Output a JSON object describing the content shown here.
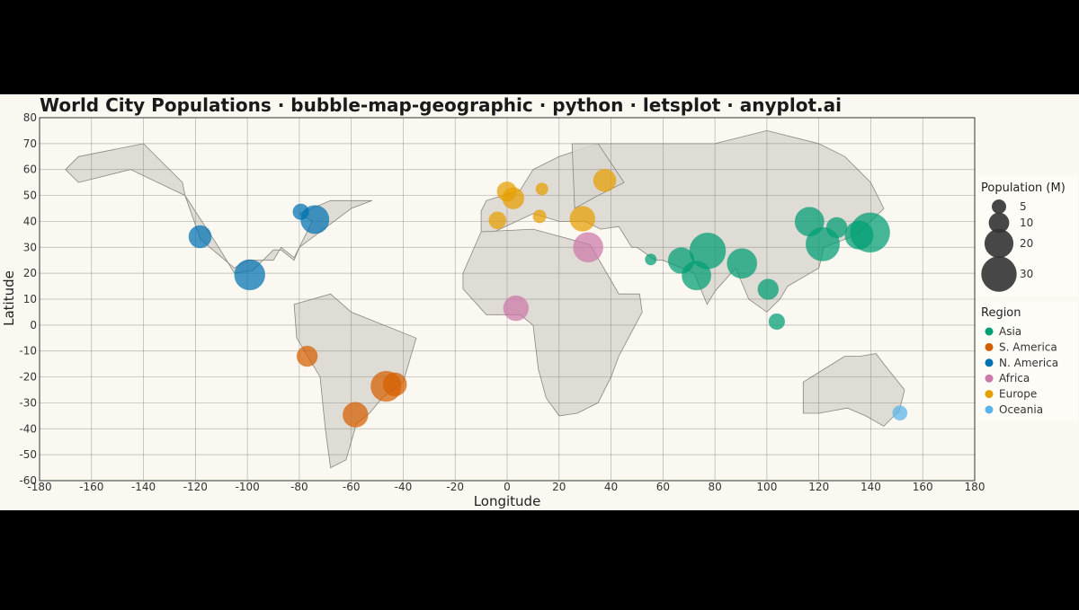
{
  "chart_data": {
    "type": "scatter",
    "title": "World City Populations · bubble-map-geographic · python · letsplot · anyplot.ai",
    "xlabel": "Longitude",
    "ylabel": "Latitude",
    "xlim": [
      -180,
      180
    ],
    "ylim": [
      -60,
      80
    ],
    "x_ticks": [
      -180,
      -160,
      -140,
      -120,
      -100,
      -80,
      -60,
      -40,
      -20,
      0,
      20,
      40,
      60,
      80,
      100,
      120,
      140,
      160,
      180
    ],
    "y_ticks": [
      -60,
      -50,
      -40,
      -30,
      -20,
      -10,
      0,
      10,
      20,
      30,
      40,
      50,
      60,
      70,
      80
    ],
    "grid": true,
    "legend_position": "right",
    "size_legend": {
      "title": "Population (M)",
      "values": [
        5,
        10,
        20,
        30
      ]
    },
    "color_legend": {
      "title": "Region",
      "entries": [
        {
          "name": "Asia",
          "color": "#009E73"
        },
        {
          "name": "S. America",
          "color": "#D55E00"
        },
        {
          "name": "N. America",
          "color": "#0072B2"
        },
        {
          "name": "Africa",
          "color": "#CC79A7"
        },
        {
          "name": "Europe",
          "color": "#E69F00"
        },
        {
          "name": "Oceania",
          "color": "#56B4E9"
        }
      ]
    },
    "series": [
      {
        "name": "Asia",
        "color": "#009E73",
        "points": [
          {
            "x": 139.7,
            "y": 35.7,
            "size": 37
          },
          {
            "x": 77.2,
            "y": 28.6,
            "size": 31
          },
          {
            "x": 121.5,
            "y": 31.2,
            "size": 27
          },
          {
            "x": 90.4,
            "y": 23.8,
            "size": 21
          },
          {
            "x": 116.4,
            "y": 39.9,
            "size": 20
          },
          {
            "x": 72.9,
            "y": 19.1,
            "size": 20
          },
          {
            "x": 135.5,
            "y": 34.7,
            "size": 19
          },
          {
            "x": 67.0,
            "y": 24.9,
            "size": 16
          },
          {
            "x": 126.9,
            "y": 37.6,
            "size": 10
          },
          {
            "x": 100.5,
            "y": 13.8,
            "size": 10
          },
          {
            "x": 103.8,
            "y": 1.35,
            "size": 6
          },
          {
            "x": 55.3,
            "y": 25.3,
            "size": 3
          }
        ]
      },
      {
        "name": "S. America",
        "color": "#D55E00",
        "points": [
          {
            "x": -46.6,
            "y": -23.6,
            "size": 22
          },
          {
            "x": -58.4,
            "y": -34.6,
            "size": 15
          },
          {
            "x": -43.2,
            "y": -22.9,
            "size": 13
          },
          {
            "x": -77.0,
            "y": -12.0,
            "size": 10
          }
        ]
      },
      {
        "name": "N. America",
        "color": "#0072B2",
        "points": [
          {
            "x": -99.1,
            "y": 19.4,
            "size": 22
          },
          {
            "x": -74.0,
            "y": 40.7,
            "size": 19
          },
          {
            "x": -118.2,
            "y": 34.1,
            "size": 12
          },
          {
            "x": -79.4,
            "y": 43.7,
            "size": 6
          }
        ]
      },
      {
        "name": "Africa",
        "color": "#CC79A7",
        "points": [
          {
            "x": 31.2,
            "y": 30.0,
            "size": 21
          },
          {
            "x": 3.4,
            "y": 6.5,
            "size": 15
          }
        ]
      },
      {
        "name": "Europe",
        "color": "#E69F00",
        "points": [
          {
            "x": 29.0,
            "y": 41.0,
            "size": 15
          },
          {
            "x": 37.6,
            "y": 55.8,
            "size": 12
          },
          {
            "x": 2.35,
            "y": 48.9,
            "size": 11
          },
          {
            "x": -0.1,
            "y": 51.5,
            "size": 9
          },
          {
            "x": -3.7,
            "y": 40.4,
            "size": 7
          },
          {
            "x": 12.5,
            "y": 41.9,
            "size": 4
          },
          {
            "x": 13.4,
            "y": 52.5,
            "size": 3.5
          }
        ]
      },
      {
        "name": "Oceania",
        "color": "#56B4E9",
        "points": [
          {
            "x": 151.2,
            "y": -33.9,
            "size": 5
          }
        ]
      }
    ],
    "land_outlines": [
      {
        "name": "north-america",
        "coords": [
          [
            -170,
            60
          ],
          [
            -165,
            65
          ],
          [
            -140,
            70
          ],
          [
            -125,
            55
          ],
          [
            -124,
            50
          ],
          [
            -118,
            33
          ],
          [
            -105,
            22
          ],
          [
            -100,
            25
          ],
          [
            -90,
            25
          ],
          [
            -87,
            30
          ],
          [
            -82,
            26
          ],
          [
            -80,
            30
          ],
          [
            -60,
            45
          ],
          [
            -52,
            48
          ],
          [
            -68,
            48
          ],
          [
            -80,
            43
          ],
          [
            -75,
            40
          ],
          [
            -80,
            30
          ],
          [
            -82,
            25
          ],
          [
            -87,
            29
          ],
          [
            -90,
            29
          ],
          [
            -98,
            21
          ],
          [
            -105,
            20
          ],
          [
            -111,
            30
          ],
          [
            -124,
            50
          ],
          [
            -145,
            60
          ],
          [
            -165,
            55
          ],
          [
            -170,
            60
          ]
        ]
      },
      {
        "name": "south-america",
        "coords": [
          [
            -82,
            8
          ],
          [
            -68,
            12
          ],
          [
            -60,
            5
          ],
          [
            -35,
            -5
          ],
          [
            -40,
            -22
          ],
          [
            -48,
            -28
          ],
          [
            -53,
            -34
          ],
          [
            -58,
            -38
          ],
          [
            -62,
            -52
          ],
          [
            -68,
            -55
          ],
          [
            -70,
            -40
          ],
          [
            -72,
            -20
          ],
          [
            -75,
            -15
          ],
          [
            -81,
            -5
          ],
          [
            -82,
            8
          ]
        ]
      },
      {
        "name": "eurasia",
        "coords": [
          [
            -10,
            36
          ],
          [
            -10,
            44
          ],
          [
            -8,
            48
          ],
          [
            5,
            52
          ],
          [
            10,
            60
          ],
          [
            20,
            65
          ],
          [
            35,
            70
          ],
          [
            70,
            70
          ],
          [
            80,
            70
          ],
          [
            100,
            75
          ],
          [
            120,
            70
          ],
          [
            130,
            65
          ],
          [
            140,
            55
          ],
          [
            145,
            45
          ],
          [
            135,
            35
          ],
          [
            122,
            30
          ],
          [
            120,
            22
          ],
          [
            108,
            15
          ],
          [
            105,
            10
          ],
          [
            100,
            5
          ],
          [
            93,
            10
          ],
          [
            88,
            22
          ],
          [
            80,
            13
          ],
          [
            77,
            8
          ],
          [
            72,
            20
          ],
          [
            60,
            25
          ],
          [
            57,
            25
          ],
          [
            50,
            30
          ],
          [
            48,
            30
          ],
          [
            43,
            38
          ],
          [
            36,
            37
          ],
          [
            30,
            40
          ],
          [
            20,
            40
          ],
          [
            10,
            43
          ],
          [
            -5,
            36
          ],
          [
            -10,
            36
          ]
        ]
      },
      {
        "name": "scandinavia",
        "coords": [
          [
            25,
            70
          ],
          [
            35,
            70
          ],
          [
            45,
            55
          ],
          [
            35,
            50
          ],
          [
            26,
            45
          ],
          [
            25,
            70
          ]
        ]
      },
      {
        "name": "africa",
        "coords": [
          [
            -17,
            20
          ],
          [
            -10,
            36
          ],
          [
            10,
            37
          ],
          [
            32,
            31
          ],
          [
            43,
            12
          ],
          [
            51,
            12
          ],
          [
            52,
            5
          ],
          [
            43,
            -12
          ],
          [
            40,
            -20
          ],
          [
            35,
            -30
          ],
          [
            27,
            -34
          ],
          [
            20,
            -35
          ],
          [
            15,
            -28
          ],
          [
            12,
            -17
          ],
          [
            10,
            0
          ],
          [
            5,
            4
          ],
          [
            -8,
            4
          ],
          [
            -17,
            14
          ],
          [
            -17,
            20
          ]
        ]
      },
      {
        "name": "australia",
        "coords": [
          [
            114,
            -22
          ],
          [
            122,
            -17
          ],
          [
            130,
            -12
          ],
          [
            136,
            -12
          ],
          [
            142,
            -11
          ],
          [
            145,
            -15
          ],
          [
            153,
            -25
          ],
          [
            151,
            -33
          ],
          [
            145,
            -39
          ],
          [
            138,
            -35
          ],
          [
            131,
            -32
          ],
          [
            120,
            -34
          ],
          [
            114,
            -34
          ],
          [
            114,
            -22
          ]
        ]
      }
    ]
  }
}
